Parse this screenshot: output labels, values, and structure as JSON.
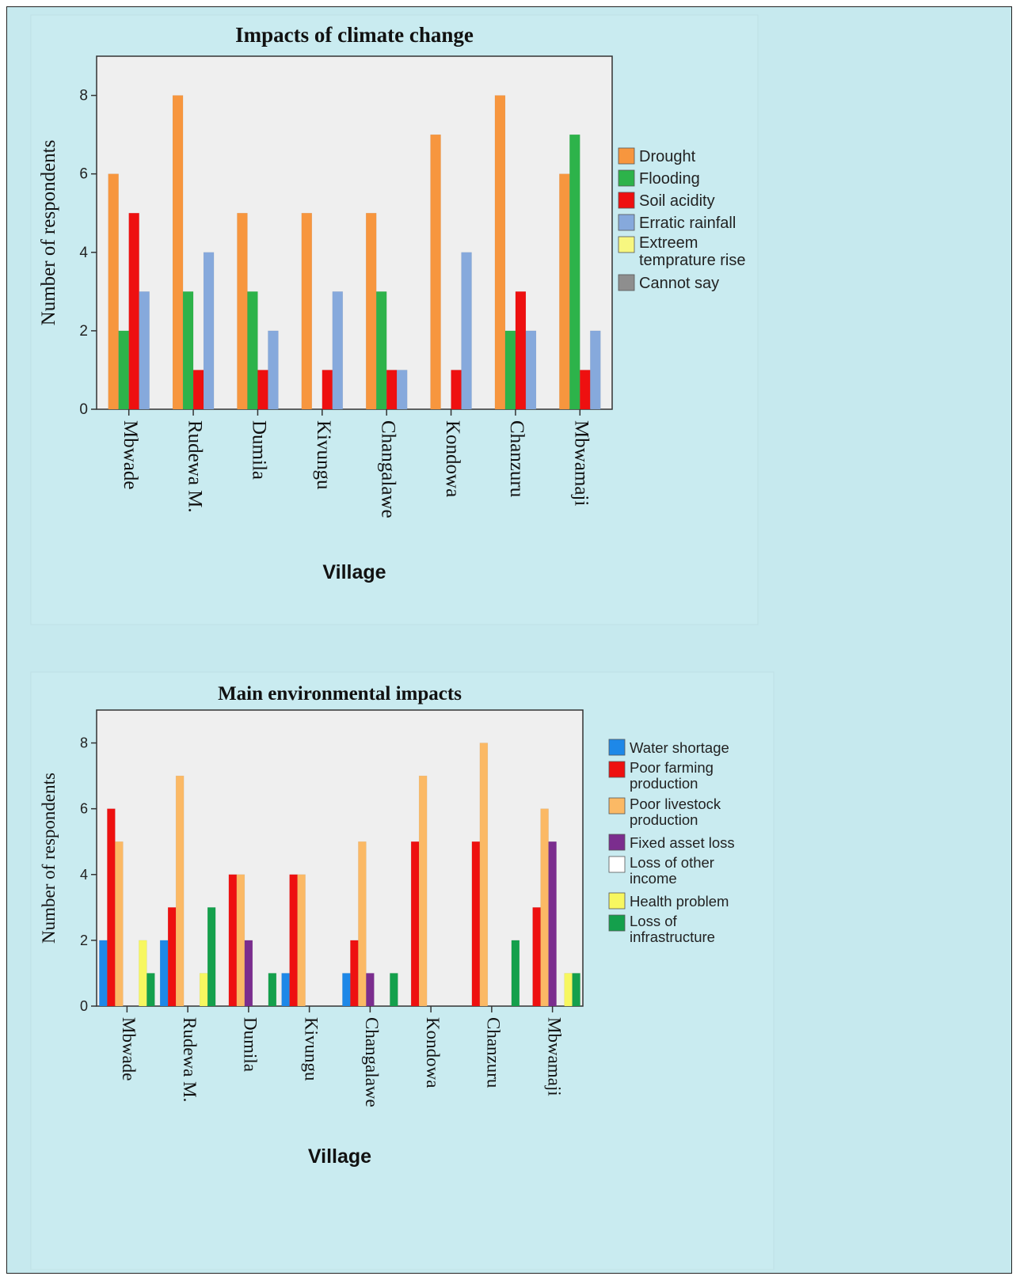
{
  "chart_data": [
    {
      "type": "bar",
      "title": "Impacts of climate change",
      "xlabel": "Village",
      "ylabel": "Number of respondents",
      "ylim": [
        0,
        9
      ],
      "yticks": [
        "0",
        "2",
        "4",
        "6",
        "8"
      ],
      "legend_position": "right",
      "grid": false,
      "categories": [
        "Mbwade",
        "Rudewa M.",
        "Dumila",
        "Kivungu",
        "Changalawe",
        "Kondowa",
        "Chanzuru",
        "Mbwamaji"
      ],
      "legend": [
        {
          "label": "Drought",
          "color": "#f7963e"
        },
        {
          "label": "Flooding",
          "color": "#2db34a"
        },
        {
          "label": "Soil acidity",
          "color": "#ee1010"
        },
        {
          "label": "Erratic rainfall",
          "color": "#86a9dc"
        },
        {
          "label": "Extreem temprature rise",
          "lines": [
            "Extreem",
            "temprature rise"
          ],
          "color": "#f7f780"
        },
        {
          "label": "Cannot say",
          "color": "#8e8e8e"
        }
      ],
      "series": [
        {
          "name": "Drought",
          "color": "#f7963e",
          "values": [
            6,
            8,
            5,
            5,
            5,
            7,
            8,
            6
          ]
        },
        {
          "name": "Flooding",
          "color": "#2db34a",
          "values": [
            2,
            3,
            3,
            0,
            3,
            0,
            2,
            7
          ]
        },
        {
          "name": "Soil acidity",
          "color": "#ee1010",
          "values": [
            5,
            1,
            1,
            1,
            1,
            1,
            3,
            1
          ]
        },
        {
          "name": "Erratic rainfall",
          "color": "#86a9dc",
          "values": [
            3,
            4,
            2,
            3,
            1,
            4,
            2,
            2
          ]
        }
      ]
    },
    {
      "type": "bar",
      "title": "Main environmental impacts",
      "xlabel": "Village",
      "ylabel": "Number of respondents",
      "ylim": [
        0,
        9
      ],
      "yticks": [
        "0",
        "2",
        "4",
        "6",
        "8"
      ],
      "legend_position": "right",
      "grid": false,
      "categories": [
        "Mbwade",
        "Rudewa M.",
        "Dumila",
        "Kivungu",
        "Changalawe",
        "Kondowa",
        "Chanzuru",
        "Mbwamaji"
      ],
      "legend": [
        {
          "label": "Water shortage",
          "color": "#1e88e8"
        },
        {
          "label": "Poor farming production",
          "lines": [
            "Poor farming",
            "production"
          ],
          "color": "#ee1010"
        },
        {
          "label": "Poor livestock production",
          "lines": [
            "Poor livestock",
            "production"
          ],
          "color": "#fbb965"
        },
        {
          "label": "Fixed asset loss",
          "color": "#7b2d8e"
        },
        {
          "label": "Loss of other income",
          "lines": [
            "Loss of other",
            "income"
          ],
          "color": "#ffffff"
        },
        {
          "label": "Health problem",
          "color": "#f7f760"
        },
        {
          "label": "Loss of infrastructure",
          "lines": [
            "Loss of",
            "infrastructure"
          ],
          "color": "#14a04c"
        }
      ],
      "series": [
        {
          "name": "Water shortage",
          "color": "#1e88e8",
          "values": [
            2,
            2,
            0,
            1,
            1,
            0,
            0,
            0
          ]
        },
        {
          "name": "Poor farming production",
          "color": "#ee1010",
          "values": [
            6,
            3,
            4,
            4,
            2,
            5,
            5,
            3
          ]
        },
        {
          "name": "Poor livestock production",
          "color": "#fbb965",
          "values": [
            5,
            7,
            4,
            4,
            5,
            7,
            8,
            6
          ]
        },
        {
          "name": "Fixed asset loss",
          "color": "#7b2d8e",
          "values": [
            0,
            0,
            2,
            0,
            1,
            0,
            0,
            5
          ]
        },
        {
          "name": "Loss of other income",
          "color": "#ffffff",
          "values": [
            0,
            0,
            0,
            0,
            0,
            0,
            0,
            0
          ]
        },
        {
          "name": "Health problem",
          "color": "#f7f760",
          "values": [
            2,
            1,
            0,
            0,
            0,
            0,
            0,
            1
          ]
        },
        {
          "name": "Loss of infrastructure",
          "color": "#14a04c",
          "values": [
            1,
            3,
            1,
            0,
            1,
            0,
            2,
            1
          ]
        }
      ]
    }
  ]
}
